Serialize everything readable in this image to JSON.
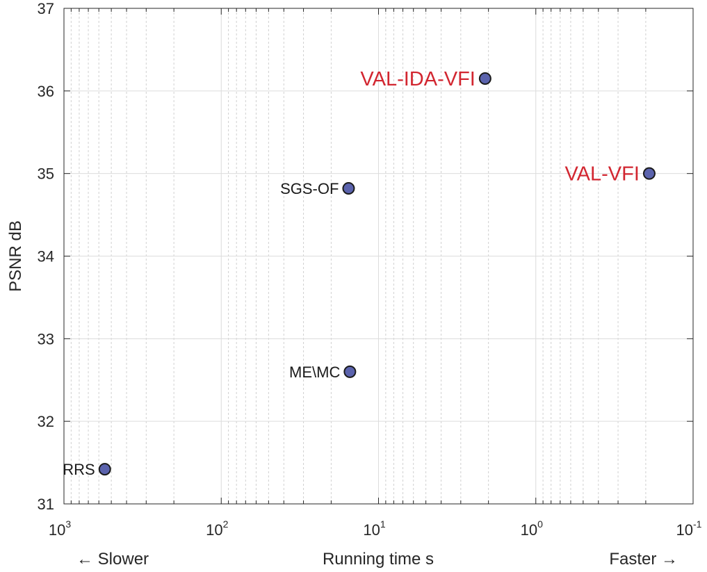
{
  "chart_data": {
    "type": "scatter",
    "xlabel": "Running time s",
    "ylabel": "PSNR dB",
    "xscale": "log",
    "x_reversed": true,
    "xlim": [
      1000,
      0.1
    ],
    "ylim": [
      31,
      37
    ],
    "grid": true,
    "minor_grid_x": true,
    "direction_labels": {
      "left": "← Slower",
      "right": "Faster →"
    },
    "x_ticks": [
      {
        "base": "10",
        "exp": "3"
      },
      {
        "base": "10",
        "exp": "2"
      },
      {
        "base": "10",
        "exp": "1"
      },
      {
        "base": "10",
        "exp": "0"
      },
      {
        "base": "10",
        "exp": "-1"
      }
    ],
    "y_ticks": [
      "31",
      "32",
      "33",
      "34",
      "35",
      "36",
      "37"
    ],
    "points": [
      {
        "label": "VAL-IDA-VFI",
        "x": 2.1,
        "y": 36.15,
        "highlight": true
      },
      {
        "label": "VAL-VFI",
        "x": 0.19,
        "y": 35.0,
        "highlight": true
      },
      {
        "label": "SGS-OF",
        "x": 15.5,
        "y": 34.82,
        "highlight": false
      },
      {
        "label": "ME\\MC",
        "x": 15.2,
        "y": 32.6,
        "highlight": false
      },
      {
        "label": "RRS",
        "x": 550,
        "y": 31.42,
        "highlight": false
      }
    ],
    "colors": {
      "marker_fill": "#5b63ad",
      "marker_edge": "#1a1a1a",
      "highlight_text": "#d22630",
      "normal_text": "#1a1a1a",
      "axis": "#262626",
      "grid_major": "#dcdcdc",
      "grid_minor": "#d0d0d0"
    }
  }
}
